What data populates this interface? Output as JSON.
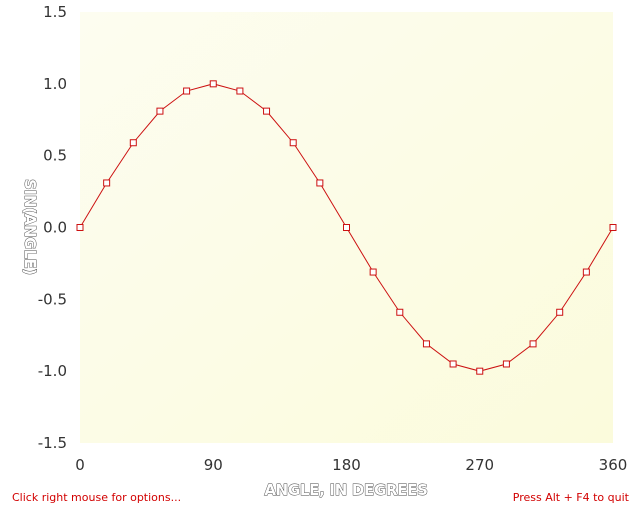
{
  "chart_data": {
    "type": "line",
    "title": "",
    "xlabel": "ANGLE, IN DEGREES",
    "ylabel": "SIN(ANGLE)",
    "xlim": [
      0,
      360
    ],
    "ylim": [
      -1.5,
      1.5
    ],
    "x_ticks": [
      "0",
      "90",
      "180",
      "270",
      "360"
    ],
    "y_ticks": [
      "1.5",
      "1.0",
      "0.5",
      "0.0",
      "-0.5",
      "-1.0",
      "-1.5"
    ],
    "grid": false,
    "legend": "none",
    "marker": "open-square",
    "series": [
      {
        "color": "#cc1111",
        "x": [
          0,
          18,
          36,
          54,
          72,
          90,
          108,
          126,
          144,
          162,
          180,
          198,
          216,
          234,
          252,
          270,
          288,
          306,
          324,
          342,
          360
        ],
        "values": [
          0.0,
          0.31,
          0.59,
          0.81,
          0.95,
          1.0,
          0.95,
          0.81,
          0.59,
          0.31,
          0.0,
          -0.31,
          -0.59,
          -0.81,
          -0.95,
          -1.0,
          -0.95,
          -0.81,
          -0.59,
          -0.31,
          0.0
        ]
      }
    ],
    "background_gradient": [
      "#fdfdf0",
      "#fbfbdc"
    ]
  },
  "footer": {
    "left_text": "Click right mouse for options...",
    "right_text": "Press Alt + F4 to quit"
  },
  "colors": {
    "series": "#cc1111",
    "footer_text": "#d20000",
    "tick_text": "#333333"
  }
}
